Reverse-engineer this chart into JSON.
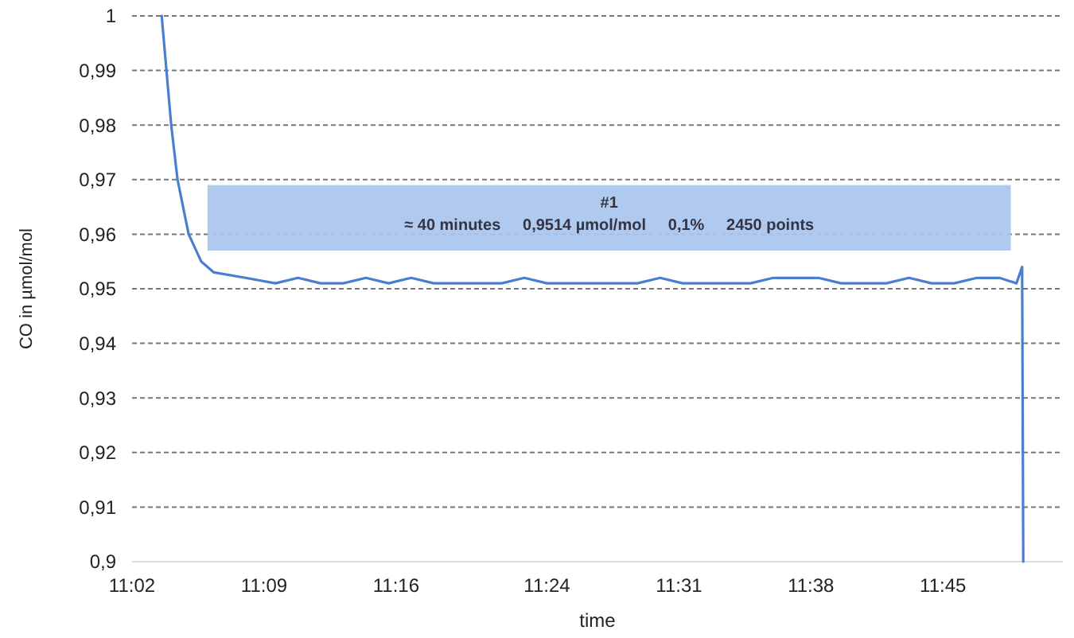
{
  "chart_data": {
    "type": "line",
    "xlabel": "time",
    "ylabel": "CO in µmol/mol",
    "xlim": [
      11.0333,
      11.856
    ],
    "ylim": [
      0.9,
      1
    ],
    "xticks": [
      {
        "value": 11.0333,
        "label": "11:02"
      },
      {
        "value": 11.15,
        "label": "11:09"
      },
      {
        "value": 11.2667,
        "label": "11:16"
      },
      {
        "value": 11.4,
        "label": "11:24"
      },
      {
        "value": 11.5167,
        "label": "11:31"
      },
      {
        "value": 11.6333,
        "label": "11:38"
      },
      {
        "value": 11.75,
        "label": "11:45"
      }
    ],
    "yticks": [
      {
        "value": 0.9,
        "label": "0,9"
      },
      {
        "value": 0.91,
        "label": "0,91"
      },
      {
        "value": 0.92,
        "label": "0,92"
      },
      {
        "value": 0.93,
        "label": "0,93"
      },
      {
        "value": 0.94,
        "label": "0,94"
      },
      {
        "value": 0.95,
        "label": "0,95"
      },
      {
        "value": 0.96,
        "label": "0,96"
      },
      {
        "value": 0.97,
        "label": "0,97"
      },
      {
        "value": 0.98,
        "label": "0,98"
      },
      {
        "value": 0.99,
        "label": "0,99"
      },
      {
        "value": 1,
        "label": "1"
      }
    ],
    "grid": "y",
    "line_style": "solid",
    "annotations": [
      "#1",
      "≈ 40 minutes     0,9514 µmol/mol     0,1%     2450 points"
    ],
    "series": [
      {
        "color": "#4a7fd0",
        "x": [
          11.0595,
          11.0637,
          11.0679,
          11.0735,
          11.0833,
          11.0944,
          11.1056,
          11.1335,
          11.16,
          11.18,
          11.2,
          11.22,
          11.24,
          11.26,
          11.28,
          11.3,
          11.32,
          11.34,
          11.36,
          11.38,
          11.4,
          11.42,
          11.44,
          11.46,
          11.48,
          11.5,
          11.52,
          11.54,
          11.56,
          11.58,
          11.6,
          11.62,
          11.64,
          11.66,
          11.68,
          11.7,
          11.72,
          11.74,
          11.76,
          11.78,
          11.8,
          11.815,
          11.82,
          11.821
        ],
        "values": [
          1,
          0.99,
          0.98,
          0.97,
          0.96,
          0.955,
          0.953,
          0.952,
          0.951,
          0.952,
          0.951,
          0.951,
          0.952,
          0.951,
          0.952,
          0.951,
          0.951,
          0.951,
          0.951,
          0.952,
          0.951,
          0.951,
          0.951,
          0.951,
          0.951,
          0.952,
          0.951,
          0.951,
          0.951,
          0.951,
          0.952,
          0.952,
          0.952,
          0.951,
          0.951,
          0.951,
          0.952,
          0.951,
          0.951,
          0.952,
          0.952,
          0.951,
          0.954,
          0.9
        ]
      }
    ]
  }
}
